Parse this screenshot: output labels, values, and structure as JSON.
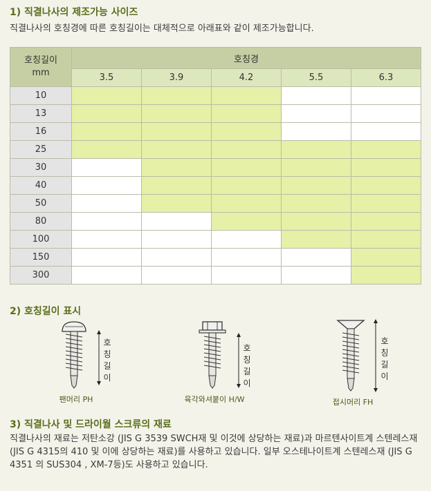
{
  "section1": {
    "title": "1) 직결나사의 제조가능 사이즈",
    "subtitle": "직결나사의 호칭경에 따른 호칭길이는 대체적으로 아래표와 같이 제조가능합니다."
  },
  "table": {
    "corner_line1": "호칭길이",
    "corner_line2": "mm",
    "diameter_header": "호칭경",
    "columns": [
      "3.5",
      "3.9",
      "4.2",
      "5.5",
      "6.3"
    ],
    "rows": [
      {
        "length": "10",
        "available": [
          true,
          true,
          true,
          false,
          false
        ]
      },
      {
        "length": "13",
        "available": [
          true,
          true,
          true,
          false,
          false
        ]
      },
      {
        "length": "16",
        "available": [
          true,
          true,
          true,
          false,
          false
        ]
      },
      {
        "length": "25",
        "available": [
          true,
          true,
          true,
          true,
          true
        ]
      },
      {
        "length": "30",
        "available": [
          false,
          true,
          true,
          true,
          true
        ]
      },
      {
        "length": "40",
        "available": [
          false,
          true,
          true,
          true,
          true
        ]
      },
      {
        "length": "50",
        "available": [
          false,
          true,
          true,
          true,
          true
        ]
      },
      {
        "length": "80",
        "available": [
          false,
          false,
          true,
          true,
          true
        ]
      },
      {
        "length": "100",
        "available": [
          false,
          false,
          false,
          true,
          true
        ]
      },
      {
        "length": "150",
        "available": [
          false,
          false,
          false,
          false,
          true
        ]
      },
      {
        "length": "300",
        "available": [
          false,
          false,
          false,
          false,
          true
        ]
      }
    ],
    "colors": {
      "available": "#e6f0a6",
      "unavailable": "#ffffff",
      "header": "#c6cfa3"
    }
  },
  "section2": {
    "title": "2) 호칭길이 표시",
    "length_label_chars": [
      "호",
      "칭",
      "길",
      "이"
    ],
    "screws": [
      {
        "caption": "팬머리 PH",
        "icon": "pan-head-screw-icon"
      },
      {
        "caption": "육각와셔붙이 H/W",
        "icon": "hex-washer-screw-icon"
      },
      {
        "caption": "접시머리 FH",
        "icon": "flat-head-screw-icon"
      }
    ]
  },
  "section3": {
    "title": "3) 직결나사 및 드라이월 스크류의 재료",
    "body": "직결나사의 재료는 저탄소강 (JIS G 3539 SWCH재 및 이것에 상당하는 재료)과 마르텐사이트계 스텐레스재 (JIS G 4315의 410 및 이에 상당하는 재료)를 사용하고 있습니다. 일부 오스테나이트계 스텐레스재 (JIS G 4351 의 SUS304 , XM-7등)도 사용하고 있습니다."
  }
}
